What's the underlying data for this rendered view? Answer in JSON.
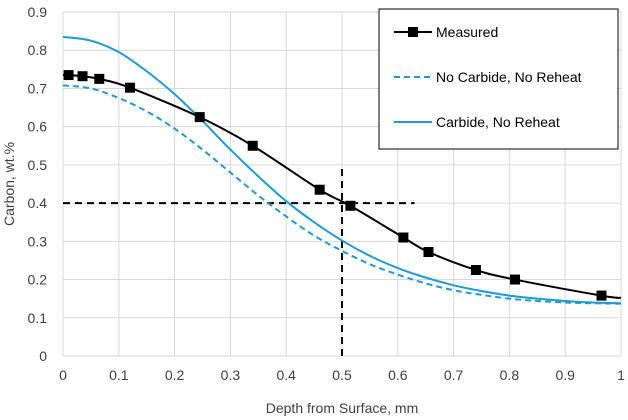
{
  "chart_data": {
    "type": "line",
    "xlabel": "Depth from Surface, mm",
    "ylabel": "Carbon, wt.%",
    "xlim": [
      0,
      1
    ],
    "ylim": [
      0,
      0.9
    ],
    "x_ticks": [
      "0",
      "0.1",
      "0.2",
      "0.3",
      "0.4",
      "0.5",
      "0.6",
      "0.7",
      "0.8",
      "0.9",
      "1"
    ],
    "y_ticks": [
      "0",
      "0.1",
      "0.2",
      "0.3",
      "0.4",
      "0.5",
      "0.6",
      "0.7",
      "0.8",
      "0.9"
    ],
    "grid": true,
    "legend_position": "top-right",
    "series": [
      {
        "name": "Measured",
        "style": "solid-with-square-markers",
        "color": "#000000",
        "x": [
          0.01,
          0.035,
          0.065,
          0.12,
          0.245,
          0.34,
          0.46,
          0.515,
          0.61,
          0.655,
          0.74,
          0.81,
          0.965
        ],
        "y": [
          0.735,
          0.732,
          0.725,
          0.702,
          0.625,
          0.55,
          0.435,
          0.393,
          0.31,
          0.272,
          0.225,
          0.2,
          0.158
        ],
        "line_x": [
          0.0,
          0.01,
          0.035,
          0.065,
          0.12,
          0.245,
          0.34,
          0.46,
          0.515,
          0.61,
          0.655,
          0.74,
          0.81,
          0.965,
          1.0
        ],
        "line_y": [
          0.735,
          0.735,
          0.732,
          0.725,
          0.702,
          0.625,
          0.55,
          0.435,
          0.393,
          0.31,
          0.272,
          0.225,
          0.2,
          0.158,
          0.152
        ]
      },
      {
        "name": "No Carbide, No Reheat",
        "style": "dashed",
        "color": "#1e9bd7",
        "x": [
          0.0,
          0.05,
          0.1,
          0.15,
          0.2,
          0.25,
          0.3,
          0.35,
          0.4,
          0.45,
          0.5,
          0.55,
          0.6,
          0.65,
          0.7,
          0.75,
          0.8,
          0.85,
          0.9,
          0.95,
          1.0
        ],
        "y": [
          0.708,
          0.7,
          0.675,
          0.64,
          0.595,
          0.54,
          0.48,
          0.42,
          0.365,
          0.315,
          0.275,
          0.24,
          0.213,
          0.19,
          0.172,
          0.16,
          0.15,
          0.144,
          0.14,
          0.138,
          0.137
        ]
      },
      {
        "name": "Carbide, No Reheat",
        "style": "solid",
        "color": "#1e9bd7",
        "x": [
          0.0,
          0.05,
          0.1,
          0.15,
          0.2,
          0.25,
          0.3,
          0.35,
          0.4,
          0.45,
          0.5,
          0.55,
          0.6,
          0.65,
          0.7,
          0.75,
          0.8,
          0.85,
          0.9,
          0.95,
          1.0
        ],
        "y": [
          0.835,
          0.825,
          0.795,
          0.745,
          0.685,
          0.615,
          0.54,
          0.47,
          0.405,
          0.35,
          0.302,
          0.262,
          0.23,
          0.205,
          0.185,
          0.17,
          0.158,
          0.15,
          0.144,
          0.14,
          0.138
        ]
      }
    ],
    "annotations": [
      {
        "type": "dashed-hline",
        "y": 0.4,
        "x_range": [
          0.0,
          0.63
        ],
        "color": "#000000"
      },
      {
        "type": "dashed-vline",
        "x": 0.5,
        "y_range": [
          0.0,
          0.5
        ],
        "color": "#000000"
      }
    ]
  }
}
